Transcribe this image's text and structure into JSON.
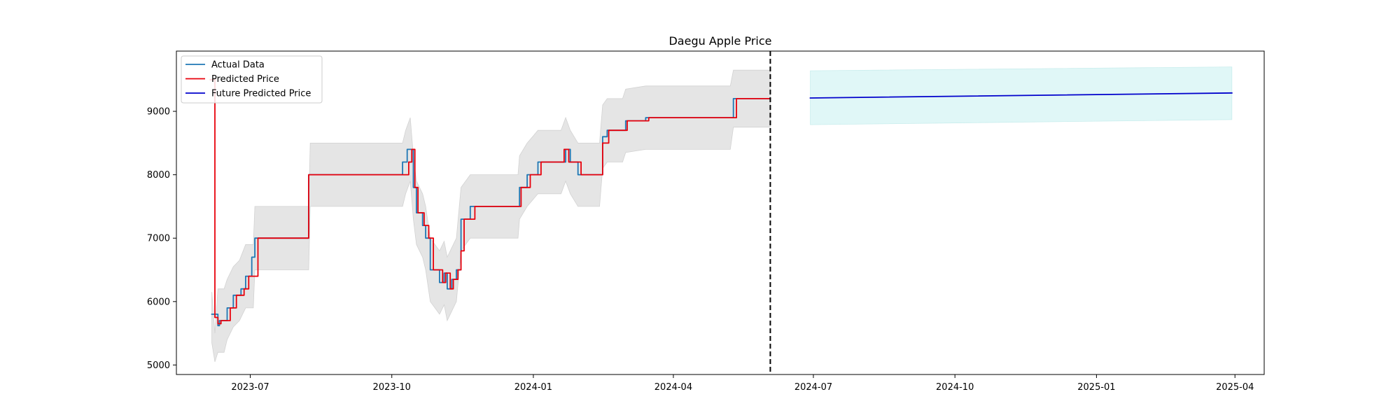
{
  "chart_data": {
    "type": "line",
    "title": "Daegu Apple Price",
    "xlabel": "",
    "ylabel": "",
    "xlim": [
      "2023-05-14",
      "2025-04-20"
    ],
    "ylim": [
      4850,
      9950
    ],
    "x_ticks": [
      "2023-07-01",
      "2023-10-01",
      "2024-01-01",
      "2024-04-01",
      "2024-07-01",
      "2024-10-01",
      "2025-01-01",
      "2025-04-01"
    ],
    "x_tick_labels": [
      "2023-07",
      "2023-10",
      "2024-01",
      "2024-04",
      "2024-07",
      "2024-10",
      "2025-01",
      "2025-04"
    ],
    "y_ticks": [
      5000,
      6000,
      7000,
      8000,
      9000
    ],
    "y_tick_labels": [
      "5000",
      "6000",
      "7000",
      "8000",
      "9000"
    ],
    "forecast_start": "2024-06-03",
    "legend_position": "upper left",
    "grid": false,
    "series": [
      {
        "name": "Actual Data",
        "color": "#1f77b4",
        "style": "step",
        "points": [
          [
            "2023-06-06",
            5800
          ],
          [
            "2023-06-10",
            5620
          ],
          [
            "2023-06-11",
            5700
          ],
          [
            "2023-06-16",
            5900
          ],
          [
            "2023-06-20",
            6100
          ],
          [
            "2023-06-25",
            6200
          ],
          [
            "2023-06-28",
            6400
          ],
          [
            "2023-07-02",
            6700
          ],
          [
            "2023-07-04",
            7000
          ],
          [
            "2023-08-05",
            7000
          ],
          [
            "2023-08-08",
            8000
          ],
          [
            "2023-10-08",
            8200
          ],
          [
            "2023-10-11",
            8400
          ],
          [
            "2023-10-13",
            8400
          ],
          [
            "2023-10-15",
            7800
          ],
          [
            "2023-10-17",
            7400
          ],
          [
            "2023-10-21",
            7200
          ],
          [
            "2023-10-23",
            7000
          ],
          [
            "2023-10-26",
            6500
          ],
          [
            "2023-11-01",
            6300
          ],
          [
            "2023-11-04",
            6450
          ],
          [
            "2023-11-06",
            6200
          ],
          [
            "2023-11-09",
            6350
          ],
          [
            "2023-11-12",
            6500
          ],
          [
            "2023-11-15",
            7300
          ],
          [
            "2023-11-21",
            7500
          ],
          [
            "2023-12-22",
            7500
          ],
          [
            "2023-12-23",
            7800
          ],
          [
            "2023-12-28",
            8000
          ],
          [
            "2024-01-04",
            8200
          ],
          [
            "2024-01-19",
            8200
          ],
          [
            "2024-01-22",
            8400
          ],
          [
            "2024-01-25",
            8200
          ],
          [
            "2024-01-30",
            8000
          ],
          [
            "2024-02-13",
            8000
          ],
          [
            "2024-02-15",
            8600
          ],
          [
            "2024-02-18",
            8700
          ],
          [
            "2024-02-28",
            8700
          ],
          [
            "2024-03-01",
            8850
          ],
          [
            "2024-03-10",
            8850
          ],
          [
            "2024-03-14",
            8900
          ],
          [
            "2024-05-08",
            8900
          ],
          [
            "2024-05-10",
            9200
          ],
          [
            "2024-06-03",
            9200
          ]
        ]
      },
      {
        "name": "Predicted Price",
        "color": "#e8000b",
        "style": "step",
        "points": [
          [
            "2023-06-05",
            9500
          ],
          [
            "2023-06-08",
            5750
          ],
          [
            "2023-06-10",
            5650
          ],
          [
            "2023-06-12",
            5700
          ],
          [
            "2023-06-18",
            5900
          ],
          [
            "2023-06-22",
            6100
          ],
          [
            "2023-06-27",
            6200
          ],
          [
            "2023-06-30",
            6400
          ],
          [
            "2023-07-06",
            7000
          ],
          [
            "2023-08-08",
            8000
          ],
          [
            "2023-10-10",
            8000
          ],
          [
            "2023-10-12",
            8200
          ],
          [
            "2023-10-14",
            8400
          ],
          [
            "2023-10-16",
            7800
          ],
          [
            "2023-10-18",
            7400
          ],
          [
            "2023-10-22",
            7200
          ],
          [
            "2023-10-25",
            7000
          ],
          [
            "2023-10-28",
            6500
          ],
          [
            "2023-11-03",
            6300
          ],
          [
            "2023-11-05",
            6450
          ],
          [
            "2023-11-08",
            6200
          ],
          [
            "2023-11-10",
            6350
          ],
          [
            "2023-11-13",
            6500
          ],
          [
            "2023-11-15",
            6800
          ],
          [
            "2023-11-17",
            7300
          ],
          [
            "2023-11-24",
            7500
          ],
          [
            "2023-12-24",
            7800
          ],
          [
            "2023-12-30",
            8000
          ],
          [
            "2024-01-06",
            8200
          ],
          [
            "2024-01-21",
            8400
          ],
          [
            "2024-01-24",
            8200
          ],
          [
            "2024-02-01",
            8000
          ],
          [
            "2024-02-15",
            8500
          ],
          [
            "2024-02-19",
            8700
          ],
          [
            "2024-03-02",
            8850
          ],
          [
            "2024-03-16",
            8900
          ],
          [
            "2024-05-12",
            9200
          ],
          [
            "2024-06-03",
            9200
          ]
        ]
      },
      {
        "name": "Future Predicted Price",
        "color": "#0000cc",
        "style": "line",
        "points": [
          [
            "2024-06-29",
            9210
          ],
          [
            "2025-03-30",
            9290
          ]
        ]
      }
    ],
    "bands": [
      {
        "name": "",
        "color": "#e5e5e5",
        "points": [
          [
            "2023-06-06",
            6150,
            5350
          ],
          [
            "2023-06-08",
            5500,
            5050
          ],
          [
            "2023-06-10",
            6200,
            5200
          ],
          [
            "2023-06-14",
            6200,
            5200
          ],
          [
            "2023-06-16",
            6350,
            5400
          ],
          [
            "2023-06-20",
            6550,
            5600
          ],
          [
            "2023-06-24",
            6650,
            5700
          ],
          [
            "2023-06-28",
            6900,
            5900
          ],
          [
            "2023-07-03",
            6900,
            5900
          ],
          [
            "2023-07-04",
            7500,
            6500
          ],
          [
            "2023-08-08",
            7500,
            6500
          ],
          [
            "2023-08-09",
            8500,
            7500
          ],
          [
            "2023-10-08",
            8500,
            7500
          ],
          [
            "2023-10-10",
            8700,
            7700
          ],
          [
            "2023-10-13",
            8900,
            7900
          ],
          [
            "2023-10-15",
            8300,
            7300
          ],
          [
            "2023-10-17",
            7900,
            6900
          ],
          [
            "2023-10-21",
            7700,
            6700
          ],
          [
            "2023-10-23",
            7500,
            6500
          ],
          [
            "2023-10-26",
            7000,
            6000
          ],
          [
            "2023-11-01",
            6800,
            5800
          ],
          [
            "2023-11-04",
            6950,
            5950
          ],
          [
            "2023-11-06",
            6700,
            5700
          ],
          [
            "2023-11-09",
            6850,
            5850
          ],
          [
            "2023-11-12",
            7000,
            6000
          ],
          [
            "2023-11-15",
            7800,
            6800
          ],
          [
            "2023-11-21",
            8000,
            7000
          ],
          [
            "2023-12-22",
            8000,
            7000
          ],
          [
            "2023-12-23",
            8300,
            7300
          ],
          [
            "2023-12-28",
            8500,
            7500
          ],
          [
            "2024-01-04",
            8700,
            7700
          ],
          [
            "2024-01-19",
            8700,
            7700
          ],
          [
            "2024-01-22",
            8900,
            7900
          ],
          [
            "2024-01-25",
            8700,
            7700
          ],
          [
            "2024-01-30",
            8500,
            7500
          ],
          [
            "2024-02-13",
            8500,
            7500
          ],
          [
            "2024-02-15",
            9100,
            8100
          ],
          [
            "2024-02-18",
            9200,
            8200
          ],
          [
            "2024-02-28",
            9200,
            8200
          ],
          [
            "2024-03-01",
            9350,
            8350
          ],
          [
            "2024-03-14",
            9400,
            8400
          ],
          [
            "2024-05-08",
            9400,
            8400
          ],
          [
            "2024-05-10",
            9650,
            8750
          ],
          [
            "2024-06-03",
            9650,
            8750
          ]
        ]
      },
      {
        "name": "",
        "color": "#e0f7f7",
        "points": [
          [
            "2024-06-29",
            9640,
            8790
          ],
          [
            "2025-03-30",
            9700,
            8870
          ]
        ]
      }
    ]
  }
}
